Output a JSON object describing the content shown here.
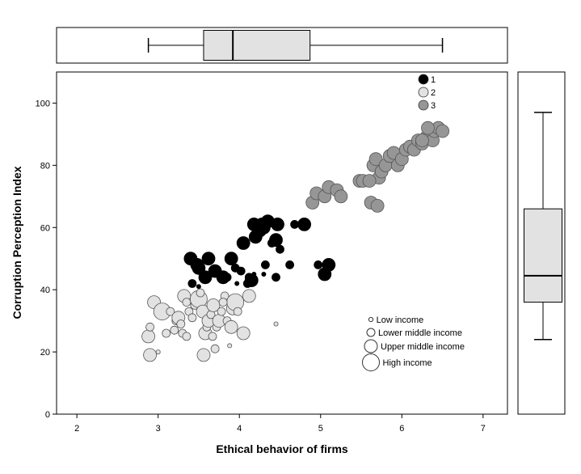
{
  "chart_data": {
    "type": "scatter",
    "xlabel": "Ethical behavior of firms",
    "ylabel": "Corruption Perception Index",
    "xlim": [
      1.75,
      7.3
    ],
    "ylim": [
      0,
      110
    ],
    "x_ticks": [
      "2",
      "3",
      "4",
      "5",
      "6",
      "7"
    ],
    "y_ticks": [
      "0",
      "20",
      "40",
      "60",
      "80",
      "100"
    ],
    "legend_clusters": {
      "placement": "top-right",
      "entries": [
        {
          "label": "1",
          "color": "#000000"
        },
        {
          "label": "2",
          "color": "#e2e2e2"
        },
        {
          "label": "3",
          "color": "#969696"
        }
      ]
    },
    "legend_income": {
      "placement": "bottom-right",
      "entries": [
        {
          "label": "Low income",
          "level": 1
        },
        {
          "label": "Lower middle income",
          "level": 2
        },
        {
          "label": "Upper middle income",
          "level": 3
        },
        {
          "label": "High income",
          "level": 4
        }
      ]
    },
    "boxplot_x": {
      "whisker_low": 2.88,
      "q1": 3.56,
      "median": 3.92,
      "q3": 4.87,
      "whisker_high": 6.5
    },
    "boxplot_y": {
      "whisker_low": 24,
      "q1": 36,
      "median": 44.5,
      "q3": 66,
      "whisker_high": 97
    },
    "series": [
      {
        "name": "1",
        "color": "#000000",
        "points": [
          [
            3.42,
            42,
            2
          ],
          [
            3.4,
            50,
            3
          ],
          [
            3.48,
            48,
            3
          ],
          [
            3.5,
            47,
            3
          ],
          [
            3.58,
            44,
            3
          ],
          [
            3.62,
            50,
            3
          ],
          [
            3.7,
            46,
            3
          ],
          [
            3.8,
            44,
            3
          ],
          [
            3.85,
            44,
            2
          ],
          [
            3.9,
            50,
            3
          ],
          [
            3.95,
            47,
            2
          ],
          [
            3.97,
            42,
            1
          ],
          [
            4.05,
            55,
            3
          ],
          [
            4.1,
            42,
            2
          ],
          [
            4.12,
            44,
            2
          ],
          [
            4.15,
            43,
            3
          ],
          [
            4.18,
            61,
            3
          ],
          [
            4.2,
            57,
            3
          ],
          [
            4.25,
            59,
            3
          ],
          [
            4.28,
            61,
            3
          ],
          [
            4.3,
            60,
            3
          ],
          [
            4.3,
            45,
            1
          ],
          [
            4.32,
            48,
            2
          ],
          [
            4.35,
            62,
            3
          ],
          [
            4.4,
            55,
            2
          ],
          [
            4.45,
            56,
            3
          ],
          [
            4.45,
            44,
            2
          ],
          [
            4.47,
            61,
            3
          ],
          [
            4.5,
            53,
            2
          ],
          [
            4.62,
            48,
            2
          ],
          [
            4.68,
            61,
            2
          ],
          [
            4.8,
            61,
            3
          ],
          [
            4.97,
            48,
            2
          ],
          [
            5.05,
            45,
            3
          ],
          [
            5.1,
            48,
            3
          ],
          [
            3.5,
            41,
            1
          ],
          [
            4.18,
            45,
            1
          ],
          [
            4.02,
            46,
            2
          ]
        ]
      },
      {
        "name": "2",
        "color": "#e2e2e2",
        "points": [
          [
            2.88,
            25,
            3
          ],
          [
            2.9,
            19,
            3
          ],
          [
            2.9,
            28,
            2
          ],
          [
            2.95,
            36,
            3
          ],
          [
            3.0,
            20,
            1
          ],
          [
            3.05,
            33,
            4
          ],
          [
            3.1,
            26,
            2
          ],
          [
            3.15,
            33,
            2
          ],
          [
            3.2,
            27,
            2
          ],
          [
            3.22,
            30,
            2
          ],
          [
            3.25,
            31,
            3
          ],
          [
            3.28,
            29,
            2
          ],
          [
            3.3,
            26,
            2
          ],
          [
            3.32,
            38,
            3
          ],
          [
            3.35,
            36,
            2
          ],
          [
            3.35,
            25,
            2
          ],
          [
            3.38,
            33,
            2
          ],
          [
            3.42,
            31,
            2
          ],
          [
            3.45,
            35,
            2
          ],
          [
            3.5,
            37,
            4
          ],
          [
            3.52,
            39,
            2
          ],
          [
            3.55,
            33,
            3
          ],
          [
            3.56,
            19,
            3
          ],
          [
            3.58,
            26,
            3
          ],
          [
            3.6,
            28,
            2
          ],
          [
            3.62,
            30,
            3
          ],
          [
            3.65,
            32,
            2
          ],
          [
            3.68,
            35,
            3
          ],
          [
            3.7,
            21,
            2
          ],
          [
            3.72,
            28,
            2
          ],
          [
            3.75,
            30,
            3
          ],
          [
            3.78,
            33,
            2
          ],
          [
            3.82,
            38,
            2
          ],
          [
            3.85,
            30,
            2
          ],
          [
            3.88,
            22,
            1
          ],
          [
            3.9,
            28,
            3
          ],
          [
            3.92,
            34,
            3
          ],
          [
            3.95,
            36,
            4
          ],
          [
            3.98,
            33,
            2
          ],
          [
            4.05,
            26,
            3
          ],
          [
            4.12,
            38,
            3
          ],
          [
            4.45,
            29,
            1
          ],
          [
            3.67,
            25,
            2
          ],
          [
            3.8,
            36,
            2
          ]
        ]
      },
      {
        "name": "3",
        "color": "#969696",
        "points": [
          [
            4.9,
            68,
            3
          ],
          [
            4.95,
            71,
            3
          ],
          [
            5.05,
            70,
            3
          ],
          [
            5.1,
            73,
            3
          ],
          [
            5.2,
            72,
            3
          ],
          [
            5.25,
            70,
            3
          ],
          [
            5.48,
            75,
            3
          ],
          [
            5.52,
            75,
            3
          ],
          [
            5.62,
            68,
            3
          ],
          [
            5.65,
            80,
            3
          ],
          [
            5.68,
            82,
            3
          ],
          [
            5.7,
            67,
            3
          ],
          [
            5.72,
            76,
            3
          ],
          [
            5.75,
            78,
            3
          ],
          [
            5.8,
            80,
            3
          ],
          [
            5.85,
            83,
            3
          ],
          [
            5.9,
            84,
            3
          ],
          [
            5.95,
            80,
            3
          ],
          [
            6.0,
            82,
            3
          ],
          [
            6.05,
            85,
            3
          ],
          [
            6.1,
            86,
            3
          ],
          [
            6.15,
            85,
            3
          ],
          [
            6.2,
            88,
            3
          ],
          [
            6.25,
            87,
            3
          ],
          [
            6.3,
            89,
            3
          ],
          [
            6.35,
            90,
            3
          ],
          [
            6.38,
            88,
            3
          ],
          [
            6.4,
            91,
            3
          ],
          [
            6.45,
            92,
            3
          ],
          [
            6.5,
            91,
            3
          ],
          [
            6.32,
            92,
            3
          ],
          [
            6.25,
            88,
            3
          ],
          [
            5.6,
            75,
            3
          ]
        ]
      }
    ]
  }
}
